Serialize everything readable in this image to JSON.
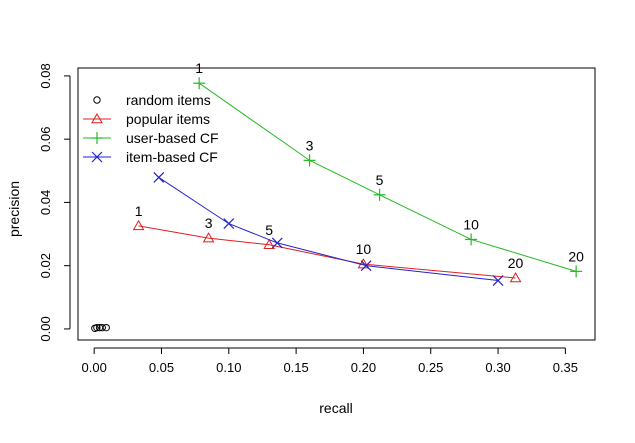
{
  "chart_data": {
    "type": "line",
    "xlabel": "recall",
    "ylabel": "precision",
    "xlim": [
      -0.012,
      0.372
    ],
    "ylim": [
      -0.0035,
      0.0825
    ],
    "x_ticks": [
      0.0,
      0.05,
      0.1,
      0.15,
      0.2,
      0.25,
      0.3,
      0.35
    ],
    "x_tick_labels": [
      "0.00",
      "0.05",
      "0.10",
      "0.15",
      "0.20",
      "0.25",
      "0.30",
      "0.35"
    ],
    "y_ticks": [
      0.0,
      0.02,
      0.04,
      0.06,
      0.08
    ],
    "y_tick_labels": [
      "0.00",
      "0.02",
      "0.04",
      "0.06",
      "0.08"
    ],
    "grid": false,
    "legend_position": "top-left",
    "series": [
      {
        "name": "random items",
        "color": "#000000",
        "marker": "circle",
        "x": [
          0.0005,
          0.002,
          0.004,
          0.006,
          0.009
        ],
        "y": [
          0.0002,
          0.0004,
          0.0004,
          0.0004,
          0.0004
        ],
        "point_labels": []
      },
      {
        "name": "popular items",
        "color": "#df2020",
        "marker": "triangle",
        "x": [
          0.033,
          0.085,
          0.13,
          0.2,
          0.313
        ],
        "y": [
          0.0326,
          0.0287,
          0.0266,
          0.0205,
          0.0161
        ],
        "point_labels": [
          "1",
          "3",
          "5",
          "10",
          "20"
        ]
      },
      {
        "name": "user-based CF",
        "color": "#22bb22",
        "marker": "plus",
        "x": [
          0.078,
          0.16,
          0.212,
          0.28,
          0.358
        ],
        "y": [
          0.0777,
          0.0533,
          0.0424,
          0.0283,
          0.0182
        ],
        "point_labels": [
          "1",
          "3",
          "5",
          "10",
          "20"
        ]
      },
      {
        "name": "item-based CF",
        "color": "#2222cc",
        "marker": "x",
        "x": [
          0.048,
          0.1,
          0.136,
          0.202,
          0.3
        ],
        "y": [
          0.0479,
          0.0333,
          0.0272,
          0.02,
          0.0153
        ],
        "point_labels": []
      }
    ]
  }
}
